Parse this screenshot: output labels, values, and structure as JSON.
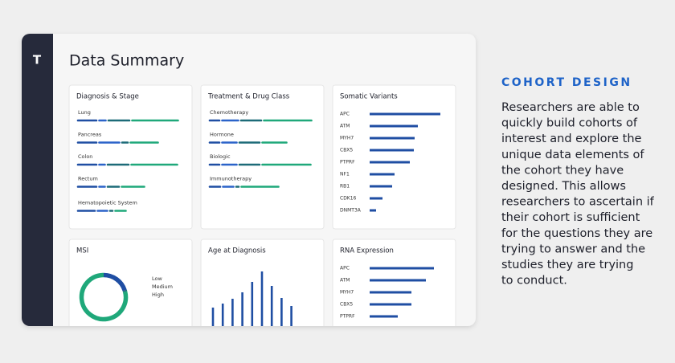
{
  "dashboard": {
    "logo": "T",
    "title": "Data Summary",
    "segment_colors": [
      "#1f4ea3",
      "#2b63c9",
      "#1d6b78",
      "#1fa87a"
    ],
    "bar_color": "#1f4ea3",
    "panels": [
      {
        "title": "Diagnosis & Stage",
        "type": "segmented",
        "rows": [
          {
            "label": "Lung",
            "values": [
              23,
              8,
              26,
              57
            ]
          },
          {
            "label": "Pancreas",
            "values": [
              23,
              25,
              7,
              34
            ]
          },
          {
            "label": "Colon",
            "values": [
              23,
              7,
              26,
              57
            ]
          },
          {
            "label": "Rectum",
            "values": [
              23,
              7,
              14,
              28
            ]
          },
          {
            "label": "Hematopoietic System",
            "values": [
              21,
              12,
              3,
              13
            ]
          }
        ]
      },
      {
        "title": "Treatment & Drug Class",
        "type": "segmented",
        "rows": [
          {
            "label": "Chemotherapy",
            "values": [
              12,
              20,
              25,
              59
            ]
          },
          {
            "label": "Hormone",
            "values": [
              12,
              18,
              25,
              30
            ]
          },
          {
            "label": "Biologic",
            "values": [
              12,
              18,
              25,
              60
            ]
          },
          {
            "label": "Immunotherapy",
            "values": [
              13,
              13,
              3,
              46
            ]
          }
        ]
      },
      {
        "title": "Somatic Variants",
        "type": "hbar",
        "categories": [
          "APC",
          "ATM",
          "MYH7",
          "CBX5",
          "PTPRF",
          "NF1",
          "RB1",
          "CDK16",
          "DNMT3A"
        ],
        "values": [
          88,
          60,
          56,
          55,
          50,
          31,
          28,
          16,
          8
        ]
      },
      {
        "title": "MSI",
        "type": "donut",
        "legend": [
          "Low",
          "Medium",
          "High"
        ],
        "values": [
          20,
          1,
          79
        ],
        "colors": [
          "#1f4ea3",
          "#1d6b78",
          "#1fa87a"
        ]
      },
      {
        "title": "Age at Diagnosis",
        "type": "vbar",
        "values": [
          23,
          28,
          34,
          42,
          55,
          68,
          50,
          35,
          25
        ]
      },
      {
        "title": "RNA Expression",
        "type": "hbar",
        "categories": [
          "APC",
          "ATM",
          "MYH7",
          "CBX5",
          "PTPRF"
        ],
        "values": [
          80,
          70,
          52,
          52,
          35
        ]
      }
    ]
  },
  "aside": {
    "heading": "COHORT DESIGN",
    "lines": [
      "Researchers are able to",
      "quickly build cohorts of",
      "interest and explore the",
      "unique data elements of",
      "the cohort they have",
      "designed. This allows",
      "researchers to ascertain if",
      "their cohort is sufficient",
      "for the questions they are",
      "trying to answer and the",
      "studies they are trying",
      "to conduct."
    ]
  }
}
